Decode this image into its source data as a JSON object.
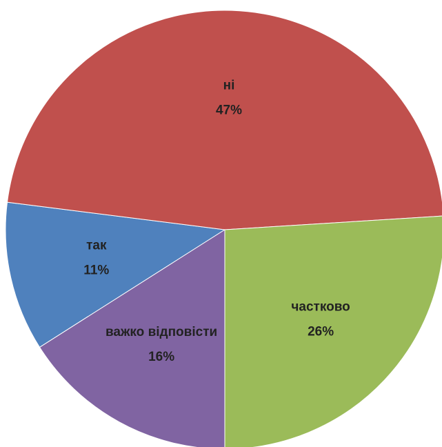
{
  "chart_data": {
    "type": "pie",
    "categories": [
      "так",
      "ні",
      "частково",
      "важко відповісти"
    ],
    "values": [
      11,
      47,
      26,
      16
    ],
    "value_labels": [
      "11%",
      "47%",
      "26%",
      "16%"
    ],
    "colors": [
      "#4f81bd",
      "#c0504d",
      "#9bbb59",
      "#8064a2"
    ]
  }
}
